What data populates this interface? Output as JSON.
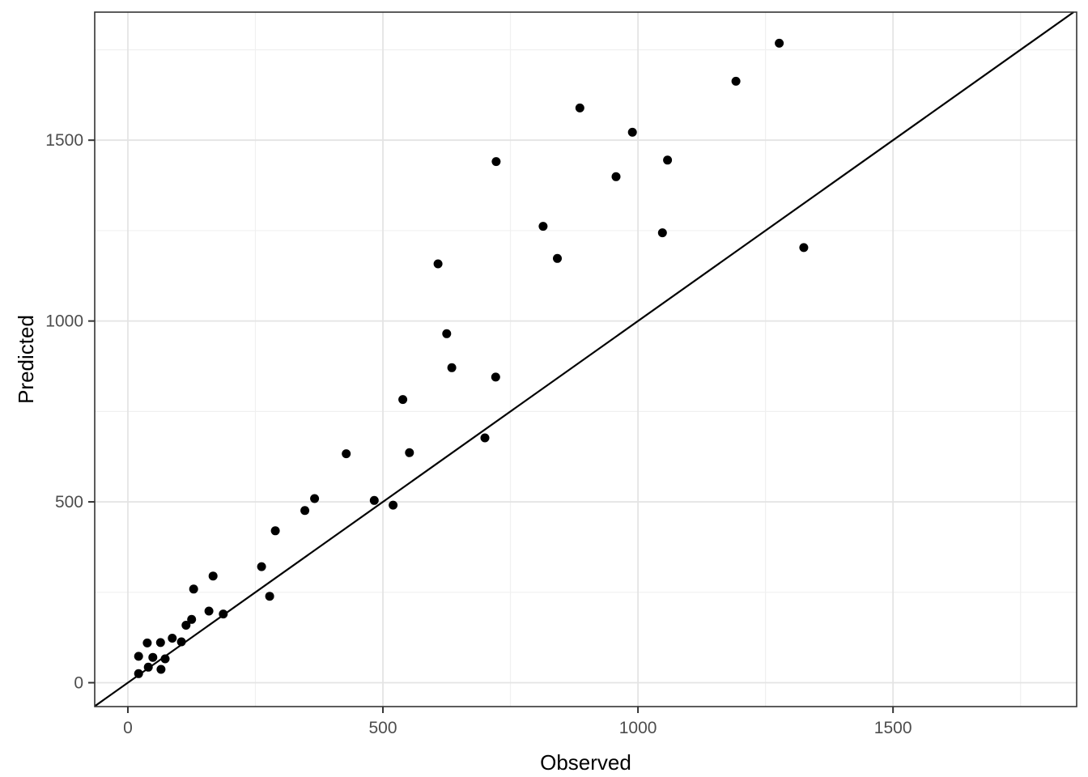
{
  "chart_data": {
    "type": "scatter",
    "title": "",
    "xlabel": "Observed",
    "ylabel": "Predicted",
    "x_ticks": [
      0,
      500,
      1000,
      1500
    ],
    "y_ticks": [
      0,
      500,
      1000,
      1500
    ],
    "x_minor_gridlines": [
      250,
      750,
      1250,
      1750
    ],
    "y_minor_gridlines": [
      250,
      750,
      1250,
      1750
    ],
    "xlim": [
      -65,
      1860
    ],
    "ylim": [
      -66,
      1854
    ],
    "grid": "major+minor",
    "legend_position": "none",
    "point_color": "#000000",
    "point_radius": 5.5,
    "identity_line": {
      "intercept": 0,
      "slope": 1,
      "color": "#000000",
      "width": 2.2
    },
    "points": [
      [
        21,
        25
      ],
      [
        40,
        43
      ],
      [
        21,
        73
      ],
      [
        49,
        70
      ],
      [
        38,
        110
      ],
      [
        64,
        111
      ],
      [
        65,
        37
      ],
      [
        73,
        66
      ],
      [
        87,
        123
      ],
      [
        105,
        113
      ],
      [
        114,
        159
      ],
      [
        125,
        175
      ],
      [
        129,
        259
      ],
      [
        167,
        295
      ],
      [
        159,
        198
      ],
      [
        187,
        190
      ],
      [
        262,
        321
      ],
      [
        278,
        239
      ],
      [
        289,
        420
      ],
      [
        347,
        476
      ],
      [
        366,
        509
      ],
      [
        428,
        633
      ],
      [
        483,
        504
      ],
      [
        520,
        491
      ],
      [
        539,
        783
      ],
      [
        552,
        636
      ],
      [
        625,
        965
      ],
      [
        635,
        871
      ],
      [
        700,
        677
      ],
      [
        721,
        845
      ],
      [
        608,
        1158
      ],
      [
        722,
        1441
      ],
      [
        814,
        1262
      ],
      [
        842,
        1173
      ],
      [
        886,
        1589
      ],
      [
        957,
        1399
      ],
      [
        989,
        1522
      ],
      [
        1048,
        1244
      ],
      [
        1058,
        1445
      ],
      [
        1192,
        1663
      ],
      [
        1277,
        1768
      ],
      [
        1325,
        1203
      ]
    ]
  },
  "style": {
    "background_color": "#ffffff",
    "panel_background": "#ffffff",
    "panel_border_color": "#333333",
    "major_grid_color": "#e4e4e4",
    "minor_grid_color": "#f0f0f0",
    "tick_mark_color": "#333333",
    "tick_label_color": "#4d4d4d",
    "axis_title_color": "#000000"
  }
}
